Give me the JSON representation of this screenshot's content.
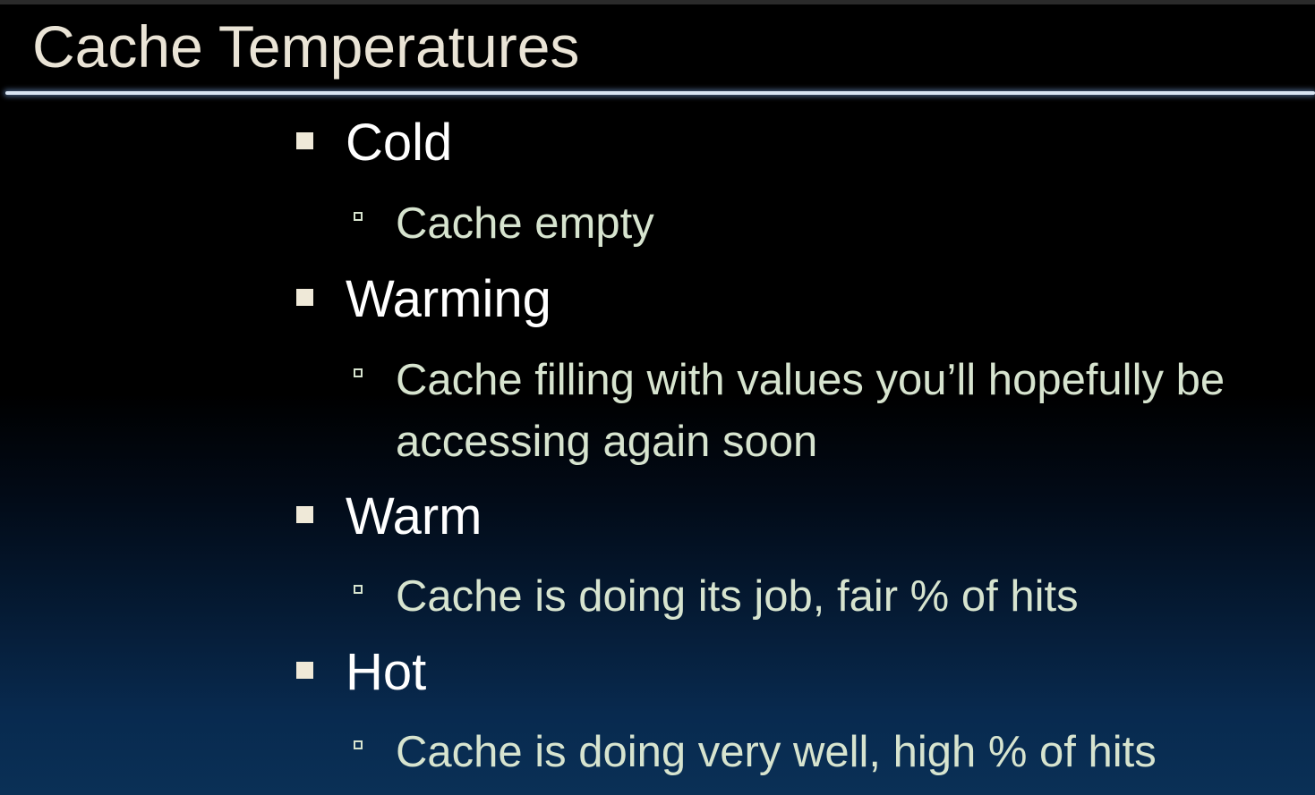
{
  "slide": {
    "title": "Cache Temperatures",
    "items": [
      {
        "label": "Cold",
        "sub": "Cache empty"
      },
      {
        "label": "Warming",
        "sub": "Cache filling with values you’ll hopefully be accessing again soon"
      },
      {
        "label": "Warm",
        "sub": "Cache is doing its job, fair % of hits"
      },
      {
        "label": "Hot",
        "sub": "Cache is doing very well, high % of hits"
      }
    ]
  },
  "colors": {
    "title": "#eae4d6",
    "level1_text": "#ffffff",
    "level2_text": "#d7e4cf",
    "rule": "#d8e4f2",
    "background_bottom": "#0a3056"
  }
}
